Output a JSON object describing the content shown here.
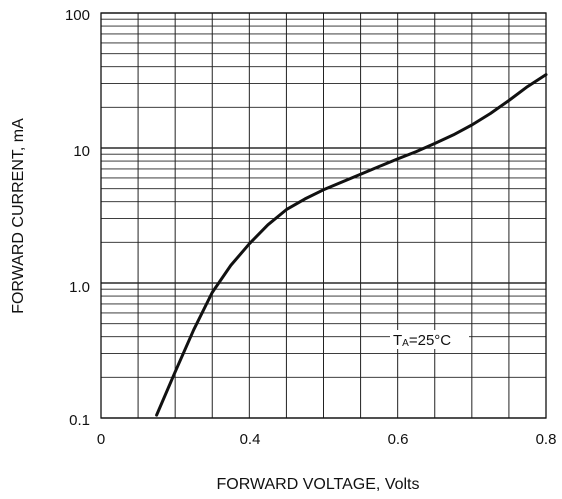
{
  "chart_data": {
    "type": "line",
    "xlabel": "FORWARD VOLTAGE, Volts",
    "ylabel": "FORWARD CURRENT, mA",
    "x_tick_labels": [
      "0",
      "0.4",
      "0.6",
      "0.8"
    ],
    "y_tick_labels": [
      "0.1",
      "1.0",
      "10",
      "100"
    ],
    "annotation": {
      "main": "T",
      "sub": "A",
      "rest": "=25°C"
    },
    "xlim": [
      0.2,
      0.8
    ],
    "ylim": [
      0.1,
      100
    ],
    "yscale": "log",
    "grid": true,
    "line_color": "#111111",
    "series": [
      {
        "x": [
          0.275,
          0.3,
          0.325,
          0.35,
          0.375,
          0.4,
          0.425,
          0.45,
          0.475,
          0.5,
          0.525,
          0.55,
          0.575,
          0.6,
          0.625,
          0.65,
          0.675,
          0.7,
          0.725,
          0.75,
          0.775,
          0.8
        ],
        "y": [
          0.105,
          0.22,
          0.45,
          0.85,
          1.35,
          1.95,
          2.7,
          3.5,
          4.2,
          4.9,
          5.6,
          6.4,
          7.3,
          8.3,
          9.4,
          10.8,
          12.5,
          14.8,
          18.0,
          22.5,
          28.5,
          35.0
        ]
      }
    ]
  }
}
